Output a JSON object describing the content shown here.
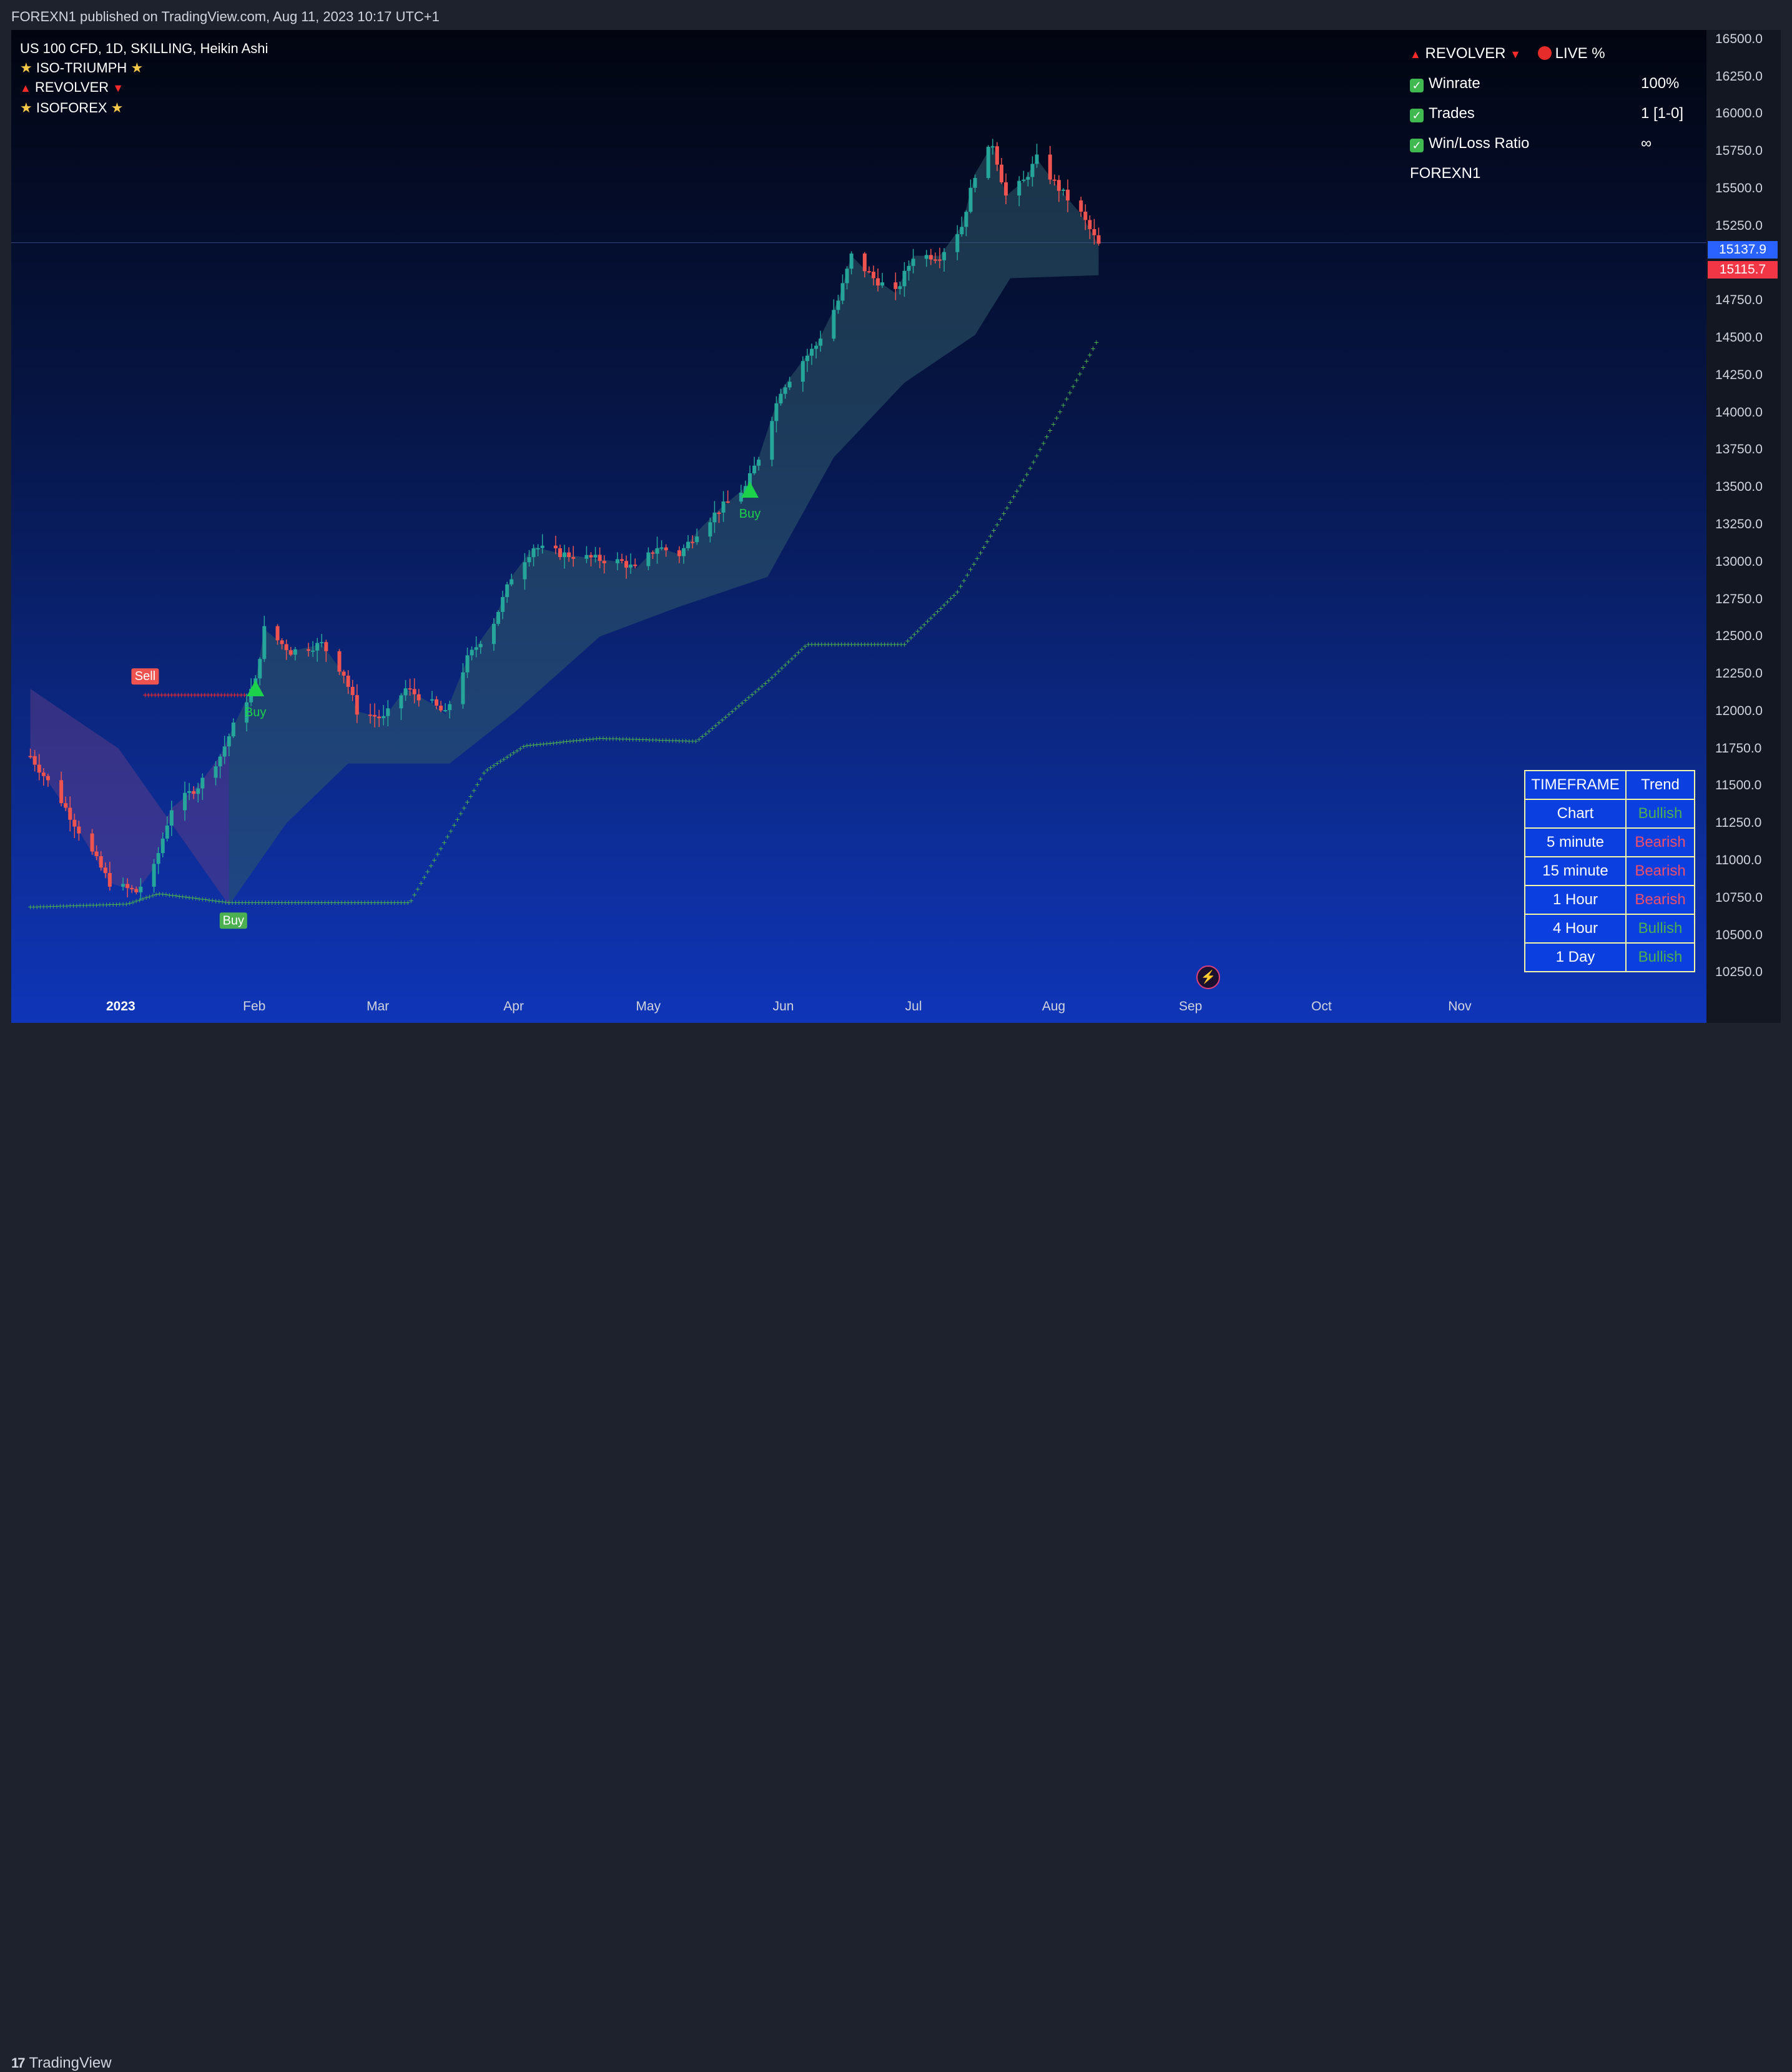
{
  "header": {
    "published_by": "FOREXN1 published on TradingView.com, Aug 11, 2023 10:17 UTC+1"
  },
  "footer": {
    "brand": "TradingView",
    "brand_mark": "17"
  },
  "legend": {
    "symbol": "US 100 CFD, 1D, SKILLING, Heikin Ashi",
    "items": [
      "ISO-TRIUMPH",
      "REVOLVER",
      "ISOFOREX"
    ]
  },
  "stats_panel": {
    "title": "REVOLVER",
    "live_label": "LIVE %",
    "rows": [
      {
        "label": "Winrate",
        "value": "100%"
      },
      {
        "label": "Trades",
        "value": "1 [1-0]"
      },
      {
        "label": "Win/Loss Ratio",
        "value": "∞"
      }
    ],
    "author": "FOREXN1"
  },
  "timeframe_table": {
    "headers": [
      "TIMEFRAME",
      "Trend"
    ],
    "rows": [
      {
        "timeframe": "Chart",
        "trend": "Bullish"
      },
      {
        "timeframe": "5 minute",
        "trend": "Bearish"
      },
      {
        "timeframe": "15 minute",
        "trend": "Bearish"
      },
      {
        "timeframe": "1 Hour",
        "trend": "Bearish"
      },
      {
        "timeframe": "4 Hour",
        "trend": "Bullish"
      },
      {
        "timeframe": "1 Day",
        "trend": "Bullish"
      }
    ]
  },
  "price_tags": {
    "upper": "15137.9",
    "lower": "15115.7"
  },
  "colors": {
    "bull": "#26a69a",
    "bear": "#ef5350",
    "signal_buy": "#4caf50",
    "signal_sell": "#ef5350",
    "accent_blue": "#2962ff"
  },
  "chart_data": {
    "type": "candlestick",
    "title": "US 100 CFD, 1D, SKILLING, Heikin Ashi",
    "ylim": [
      10125,
      16562.5
    ],
    "y_ticks": [
      "16500.0",
      "16250.0",
      "16000.0",
      "15750.0",
      "15500.0",
      "15250.0",
      "14750.0",
      "14500.0",
      "14250.0",
      "14000.0",
      "13750.0",
      "13500.0",
      "13250.0",
      "13000.0",
      "12750.0",
      "12500.0",
      "12250.0",
      "12000.0",
      "11750.0",
      "11500.0",
      "11250.0",
      "11000.0",
      "10750.0",
      "10500.0",
      "10250.0"
    ],
    "x_ticks": [
      {
        "label": "2023",
        "date": "2023-01-01",
        "bold": true
      },
      {
        "label": "Feb",
        "date": "2023-02-01"
      },
      {
        "label": "Mar",
        "date": "2023-03-01"
      },
      {
        "label": "Apr",
        "date": "2023-04-01"
      },
      {
        "label": "May",
        "date": "2023-05-01"
      },
      {
        "label": "Jun",
        "date": "2023-06-01"
      },
      {
        "label": "Jul",
        "date": "2023-07-01"
      },
      {
        "label": "Aug",
        "date": "2023-08-01"
      },
      {
        "label": "Sep",
        "date": "2023-09-01"
      },
      {
        "label": "Oct",
        "date": "2023-10-01"
      },
      {
        "label": "Nov",
        "date": "2023-11-01"
      }
    ],
    "close_path": [
      [
        "2022-12-12",
        11700
      ],
      [
        "2022-12-19",
        11400
      ],
      [
        "2022-12-26",
        11050
      ],
      [
        "2022-12-30",
        10850
      ],
      [
        "2023-01-05",
        10790
      ],
      [
        "2023-01-09",
        10950
      ],
      [
        "2023-01-13",
        11350
      ],
      [
        "2023-01-19",
        11500
      ],
      [
        "2023-01-24",
        11700
      ],
      [
        "2023-01-27",
        11900
      ],
      [
        "2023-02-01",
        12200
      ],
      [
        "2023-02-03",
        12550
      ],
      [
        "2023-02-09",
        12400
      ],
      [
        "2023-02-16",
        12450
      ],
      [
        "2023-02-21",
        12250
      ],
      [
        "2023-02-24",
        12000
      ],
      [
        "2023-03-02",
        11950
      ],
      [
        "2023-03-07",
        12150
      ],
      [
        "2023-03-13",
        12050
      ],
      [
        "2023-03-16",
        11980
      ],
      [
        "2023-03-21",
        12350
      ],
      [
        "2023-03-27",
        12600
      ],
      [
        "2023-03-31",
        12900
      ],
      [
        "2023-04-05",
        13100
      ],
      [
        "2023-04-12",
        13050
      ],
      [
        "2023-04-19",
        13020
      ],
      [
        "2023-04-25",
        13000
      ],
      [
        "2023-04-28",
        12950
      ],
      [
        "2023-05-03",
        13100
      ],
      [
        "2023-05-08",
        13050
      ],
      [
        "2023-05-12",
        13200
      ],
      [
        "2023-05-17",
        13350
      ],
      [
        "2023-05-23",
        13500
      ],
      [
        "2023-05-26",
        13700
      ],
      [
        "2023-05-31",
        14150
      ],
      [
        "2023-06-05",
        14350
      ],
      [
        "2023-06-08",
        14450
      ],
      [
        "2023-06-13",
        14750
      ],
      [
        "2023-06-16",
        15050
      ],
      [
        "2023-06-21",
        14900
      ],
      [
        "2023-06-26",
        14800
      ],
      [
        "2023-06-30",
        15050
      ],
      [
        "2023-07-06",
        15050
      ],
      [
        "2023-07-11",
        15250
      ],
      [
        "2023-07-14",
        15600
      ],
      [
        "2023-07-18",
        15800
      ],
      [
        "2023-07-21",
        15450
      ],
      [
        "2023-07-25",
        15550
      ],
      [
        "2023-07-28",
        15700
      ],
      [
        "2023-08-02",
        15500
      ],
      [
        "2023-08-07",
        15330
      ],
      [
        "2023-08-11",
        15120
      ]
    ],
    "cloud_lower": [
      [
        "2022-12-12",
        12150
      ],
      [
        "2023-01-01",
        11750
      ],
      [
        "2023-01-26",
        10700
      ],
      [
        "2023-02-08",
        11250
      ],
      [
        "2023-02-22",
        11650
      ],
      [
        "2023-03-17",
        11650
      ],
      [
        "2023-04-01",
        12000
      ],
      [
        "2023-04-20",
        12500
      ],
      [
        "2023-05-08",
        12700
      ],
      [
        "2023-05-28",
        12900
      ],
      [
        "2023-06-12",
        13700
      ],
      [
        "2023-06-28",
        14200
      ],
      [
        "2023-07-14",
        14520
      ],
      [
        "2023-07-22",
        14900
      ],
      [
        "2023-08-11",
        14920
      ]
    ],
    "trailing_stop_buy": [
      [
        "2022-12-12",
        10690
      ],
      [
        "2023-01-03",
        10710
      ],
      [
        "2023-01-10",
        10780
      ],
      [
        "2023-01-26",
        10720
      ],
      [
        "2023-03-08",
        10720
      ],
      [
        "2023-03-25",
        11600
      ],
      [
        "2023-04-03",
        11770
      ],
      [
        "2023-04-20",
        11820
      ],
      [
        "2023-05-12",
        11800
      ],
      [
        "2023-05-28",
        12200
      ],
      [
        "2023-06-06",
        12450
      ],
      [
        "2023-06-28",
        12450
      ],
      [
        "2023-07-10",
        12800
      ],
      [
        "2023-07-26",
        13600
      ],
      [
        "2023-08-11",
        14500
      ]
    ],
    "trailing_stop_sell": [
      [
        "2023-01-07",
        12110
      ],
      [
        "2023-01-30",
        12110
      ]
    ],
    "signals": [
      {
        "type": "Sell",
        "date": "2023-01-07",
        "price": 12170
      },
      {
        "type": "Buy",
        "date": "2023-01-27",
        "price": 10660,
        "style": "box"
      },
      {
        "type": "Buy",
        "date": "2023-02-01",
        "price": 12150,
        "style": "triangle"
      },
      {
        "type": "Buy",
        "date": "2023-05-24",
        "price": 13480,
        "style": "triangle"
      }
    ],
    "last_price": 15115.7
  }
}
